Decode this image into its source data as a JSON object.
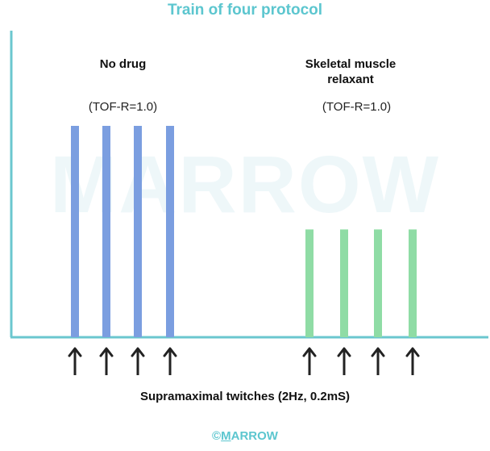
{
  "title": "Train of four protocol",
  "watermark": "MARROW",
  "groups": [
    {
      "label_lines": [
        "No drug"
      ],
      "ratio": "(TOF-R=1.0)",
      "twitch_heights": [
        1.0,
        1.0,
        1.0,
        1.0
      ],
      "color": "#7b9ee0"
    },
    {
      "label_lines": [
        "Skeletal muscle",
        "relaxant"
      ],
      "ratio": "(TOF-R=1.0)",
      "twitch_heights": [
        0.51,
        0.51,
        0.51,
        0.51
      ],
      "color": "#8fdca5"
    }
  ],
  "stimulus_icon": "up-arrow-icon",
  "caption": "Supramaximal twitches (2Hz, 0.2mS)",
  "footer": {
    "symbol": "©",
    "brand_first": "M",
    "brand_rest": "ARROW"
  },
  "colors": {
    "title": "#5cc6cf",
    "axis": "#6bc7cf",
    "watermark": "#eef7f9",
    "arrow": "#222222",
    "footer": "#5cc6cf"
  }
}
